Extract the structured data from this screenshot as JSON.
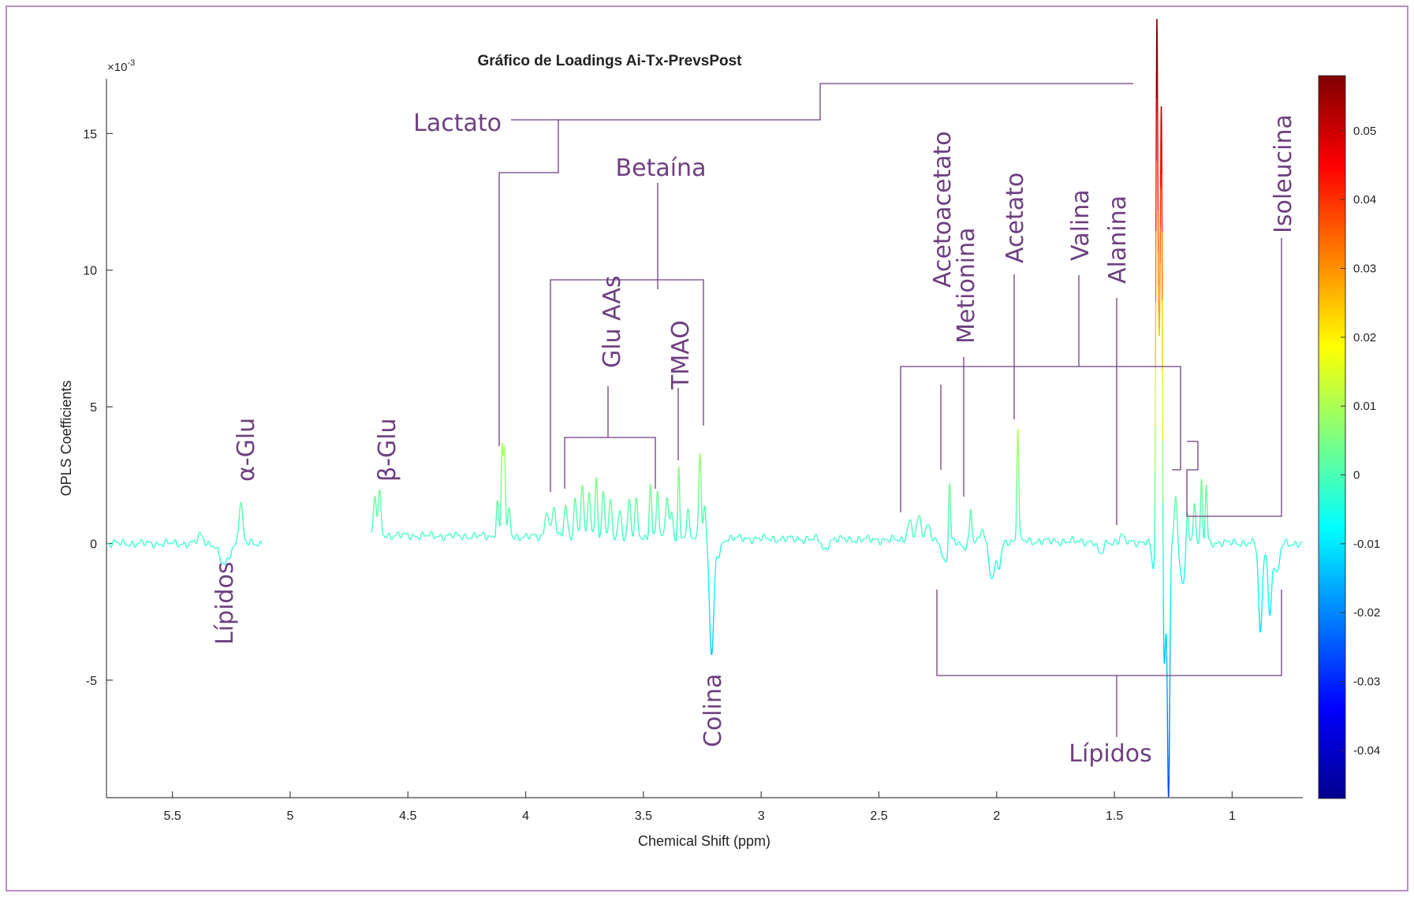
{
  "chart_data": {
    "type": "line",
    "title": "Gráfico de Loadings Ai-Tx-PrevsPost",
    "xlabel": "Chemical Shift (ppm)",
    "ylabel": "OPLS Coefficients",
    "y_exponent": "×10",
    "y_exponent_power": "-3",
    "x_reversed": true,
    "xlim": [
      5.78,
      0.7
    ],
    "ylim": [
      -9.3,
      17.0
    ],
    "x_ticks": [
      5.5,
      5,
      4.5,
      4,
      3.5,
      3,
      2.5,
      2,
      1.5,
      1
    ],
    "x_tick_labels": [
      "5.5",
      "5",
      "4.5",
      "4",
      "3.5",
      "3",
      "2.5",
      "2",
      "1.5",
      "1"
    ],
    "y_ticks": [
      15,
      10,
      5,
      0,
      -5
    ],
    "y_tick_labels": [
      "15",
      "10",
      "5",
      "0",
      "-5"
    ],
    "color_mapped_by": "coefficient",
    "colorbar": {
      "range": [
        -0.047,
        0.058
      ],
      "ticks": [
        0.05,
        0.04,
        0.03,
        0.02,
        0.01,
        0,
        -0.01,
        -0.02,
        -0.03,
        -0.04
      ],
      "tick_labels": [
        "0.05",
        "0.04",
        "0.03",
        "0.02",
        "0.01",
        "0",
        "-0.01",
        "-0.02",
        "-0.03",
        "-0.04"
      ],
      "colormap": "jet"
    },
    "segments": [
      {
        "x": [
          5.78,
          5.12
        ],
        "base": [
          0,
          0
        ]
      },
      {
        "x": [
          4.66,
          0.7
        ],
        "base": [
          0.3,
          0
        ]
      }
    ],
    "peaks": [
      {
        "x": 5.38,
        "y": 0.3,
        "w": 0.012
      },
      {
        "x": 5.28,
        "y": -0.8,
        "w": 0.02
      },
      {
        "x": 5.21,
        "y": 1.5,
        "w": 0.008
      },
      {
        "x": 4.64,
        "y": 1.4,
        "w": 0.006
      },
      {
        "x": 4.62,
        "y": 1.5,
        "w": 0.006
      },
      {
        "x": 4.12,
        "y": 1.3,
        "w": 0.005
      },
      {
        "x": 4.1,
        "y": 3.2,
        "w": 0.004
      },
      {
        "x": 4.09,
        "y": 3.2,
        "w": 0.004
      },
      {
        "x": 4.07,
        "y": 1.0,
        "w": 0.005
      },
      {
        "x": 3.91,
        "y": 1.0,
        "w": 0.008
      },
      {
        "x": 3.88,
        "y": 1.1,
        "w": 0.007
      },
      {
        "x": 3.83,
        "y": 1.2,
        "w": 0.007
      },
      {
        "x": 3.79,
        "y": 1.4,
        "w": 0.006
      },
      {
        "x": 3.76,
        "y": 1.9,
        "w": 0.006
      },
      {
        "x": 3.73,
        "y": 1.7,
        "w": 0.006
      },
      {
        "x": 3.7,
        "y": 2.3,
        "w": 0.005
      },
      {
        "x": 3.67,
        "y": 1.6,
        "w": 0.006
      },
      {
        "x": 3.64,
        "y": 1.3,
        "w": 0.006
      },
      {
        "x": 3.6,
        "y": 1.0,
        "w": 0.007
      },
      {
        "x": 3.56,
        "y": 1.4,
        "w": 0.006
      },
      {
        "x": 3.53,
        "y": 1.3,
        "w": 0.006
      },
      {
        "x": 3.47,
        "y": 2.0,
        "w": 0.005
      },
      {
        "x": 3.44,
        "y": 1.8,
        "w": 0.005
      },
      {
        "x": 3.4,
        "y": 1.6,
        "w": 0.006
      },
      {
        "x": 3.38,
        "y": 1.0,
        "w": 0.006
      },
      {
        "x": 3.35,
        "y": 2.5,
        "w": 0.004
      },
      {
        "x": 3.31,
        "y": 0.9,
        "w": 0.006
      },
      {
        "x": 3.26,
        "y": 3.3,
        "w": 0.005
      },
      {
        "x": 3.24,
        "y": 1.2,
        "w": 0.005
      },
      {
        "x": 3.21,
        "y": -4.4,
        "w": 0.009
      },
      {
        "x": 3.18,
        "y": -0.6,
        "w": 0.01
      },
      {
        "x": 2.73,
        "y": -0.4,
        "w": 0.012
      },
      {
        "x": 2.37,
        "y": 0.7,
        "w": 0.01
      },
      {
        "x": 2.33,
        "y": 0.8,
        "w": 0.01
      },
      {
        "x": 2.29,
        "y": 0.6,
        "w": 0.01
      },
      {
        "x": 2.22,
        "y": -0.9,
        "w": 0.012
      },
      {
        "x": 2.2,
        "y": 2.3,
        "w": 0.004
      },
      {
        "x": 2.14,
        "y": -0.3,
        "w": 0.01
      },
      {
        "x": 2.11,
        "y": 1.1,
        "w": 0.004
      },
      {
        "x": 2.06,
        "y": 0.5,
        "w": 0.008
      },
      {
        "x": 2.02,
        "y": -1.4,
        "w": 0.012
      },
      {
        "x": 1.99,
        "y": -0.9,
        "w": 0.01
      },
      {
        "x": 1.91,
        "y": 4.2,
        "w": 0.004
      },
      {
        "x": 1.56,
        "y": -0.5,
        "w": 0.012
      },
      {
        "x": 1.47,
        "y": 0.3,
        "w": 0.006
      },
      {
        "x": 1.33,
        "y": -1.2,
        "w": 0.01
      },
      {
        "x": 1.32,
        "y": 16.7,
        "w": 0.004
      },
      {
        "x": 1.31,
        "y": 6.5,
        "w": 0.008
      },
      {
        "x": 1.3,
        "y": 15.0,
        "w": 0.004
      },
      {
        "x": 1.29,
        "y": -4.8,
        "w": 0.008
      },
      {
        "x": 1.27,
        "y": -9.1,
        "w": 0.005
      },
      {
        "x": 1.24,
        "y": 1.6,
        "w": 0.006
      },
      {
        "x": 1.21,
        "y": -1.6,
        "w": 0.01
      },
      {
        "x": 1.19,
        "y": 1.4,
        "w": 0.005
      },
      {
        "x": 1.16,
        "y": 1.5,
        "w": 0.005
      },
      {
        "x": 1.13,
        "y": 2.2,
        "w": 0.004
      },
      {
        "x": 1.11,
        "y": 2.1,
        "w": 0.004
      },
      {
        "x": 0.88,
        "y": -3.3,
        "w": 0.008
      },
      {
        "x": 0.84,
        "y": -2.6,
        "w": 0.008
      },
      {
        "x": 0.81,
        "y": -1.2,
        "w": 0.01
      }
    ]
  },
  "annotations": [
    {
      "key": "lactato",
      "text": "Lactato"
    },
    {
      "key": "betaina",
      "text": "Betaína"
    },
    {
      "key": "glu_aas",
      "text": "Glu AAs"
    },
    {
      "key": "tmao",
      "text": "TMAO"
    },
    {
      "key": "alpha_glu",
      "text": "α-Glu"
    },
    {
      "key": "beta_glu",
      "text": "β-Glu"
    },
    {
      "key": "lipidos_left",
      "text": "Lípidos"
    },
    {
      "key": "colina",
      "text": "Colina"
    },
    {
      "key": "acetoacetato",
      "text": "Acetoacetato"
    },
    {
      "key": "metionina",
      "text": "Metionina"
    },
    {
      "key": "acetato",
      "text": "Acetato"
    },
    {
      "key": "valina",
      "text": "Valina"
    },
    {
      "key": "alanina",
      "text": "Alanina"
    },
    {
      "key": "isoleucina",
      "text": "Isoleucina"
    },
    {
      "key": "lipidos_right",
      "text": "Lípidos"
    }
  ],
  "colors": {
    "frame": "#b58fc0",
    "annotation": "#6e3f80",
    "axis": "#444444"
  }
}
